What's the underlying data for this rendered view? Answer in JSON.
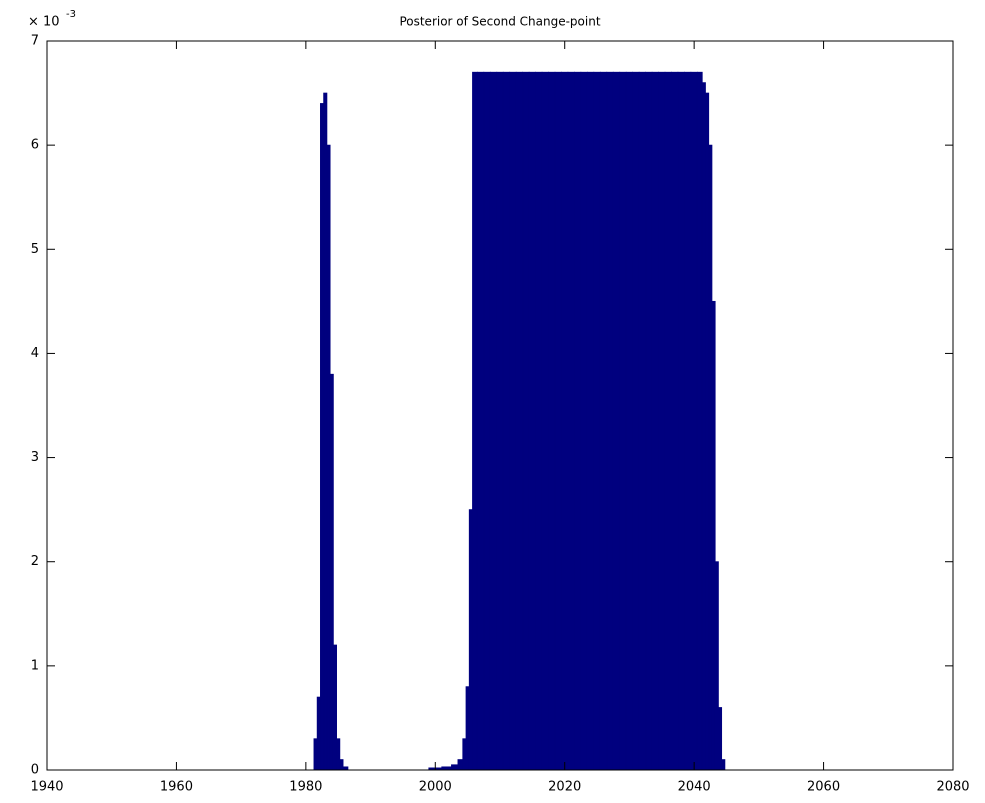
{
  "chart_data": {
    "type": "bar",
    "title": "Posterior of Second Change-point",
    "yaxis_multiplier": "× 10",
    "yaxis_exponent": "-3",
    "color": "#00007f",
    "x": [
      1948,
      1952,
      1956,
      1960,
      1964,
      1968,
      1972,
      1976,
      1980,
      1981,
      1981.5,
      1982,
      1982.5,
      1983,
      1983.5,
      1984,
      1984.5,
      1985,
      1985.5,
      1986,
      1987,
      1990,
      1994,
      1998,
      2000,
      2002,
      2003,
      2004,
      2004.5,
      2005,
      2005.5,
      2006,
      2007,
      2008,
      2009,
      2010,
      2011,
      2012,
      2013,
      2014,
      2015,
      2016,
      2017,
      2018,
      2019,
      2020,
      2021,
      2022,
      2023,
      2024,
      2025,
      2026,
      2027,
      2028,
      2029,
      2030,
      2031,
      2032,
      2033,
      2034,
      2035,
      2036,
      2037,
      2038,
      2039,
      2040,
      2041,
      2041.5,
      2042,
      2042.5,
      2043,
      2043.5,
      2044,
      2044.5,
      2045,
      2048,
      2052,
      2056,
      2060,
      2064,
      2066
    ],
    "values": [
      0,
      0,
      0,
      0,
      0,
      0,
      0,
      0,
      0,
      0,
      0.0003,
      0.0007,
      0.0064,
      0.0065,
      0.006,
      0.0038,
      0.0012,
      0.0003,
      0.0001,
      3e-05,
      0,
      0,
      0,
      0,
      2e-05,
      3e-05,
      5e-05,
      0.0001,
      0.0003,
      0.0008,
      0.0025,
      0.0067,
      0.0067,
      0.0067,
      0.0067,
      0.0067,
      0.0067,
      0.0067,
      0.0067,
      0.0067,
      0.0067,
      0.0067,
      0.0067,
      0.0067,
      0.0067,
      0.0067,
      0.0067,
      0.0067,
      0.0067,
      0.0067,
      0.0067,
      0.0067,
      0.0067,
      0.0067,
      0.0067,
      0.0067,
      0.0067,
      0.0067,
      0.0067,
      0.0067,
      0.0067,
      0.0067,
      0.0067,
      0.0067,
      0.0067,
      0.0067,
      0.0067,
      0.0066,
      0.0065,
      0.006,
      0.0045,
      0.002,
      0.0006,
      0.0001,
      0,
      0,
      0,
      0,
      0,
      0,
      0
    ],
    "xlim": [
      1940,
      2080
    ],
    "xticks": [
      1940,
      1960,
      1980,
      2000,
      2020,
      2040,
      2060,
      2080
    ],
    "ylim": [
      0,
      0.007
    ],
    "yticks": [
      {
        "value": 0,
        "label": "0"
      },
      {
        "value": 0.001,
        "label": "1"
      },
      {
        "value": 0.002,
        "label": "2"
      },
      {
        "value": 0.003,
        "label": "3"
      },
      {
        "value": 0.004,
        "label": "4"
      },
      {
        "value": 0.005,
        "label": "5"
      },
      {
        "value": 0.006,
        "label": "6"
      },
      {
        "value": 0.007,
        "label": "7"
      }
    ],
    "grid": false
  }
}
